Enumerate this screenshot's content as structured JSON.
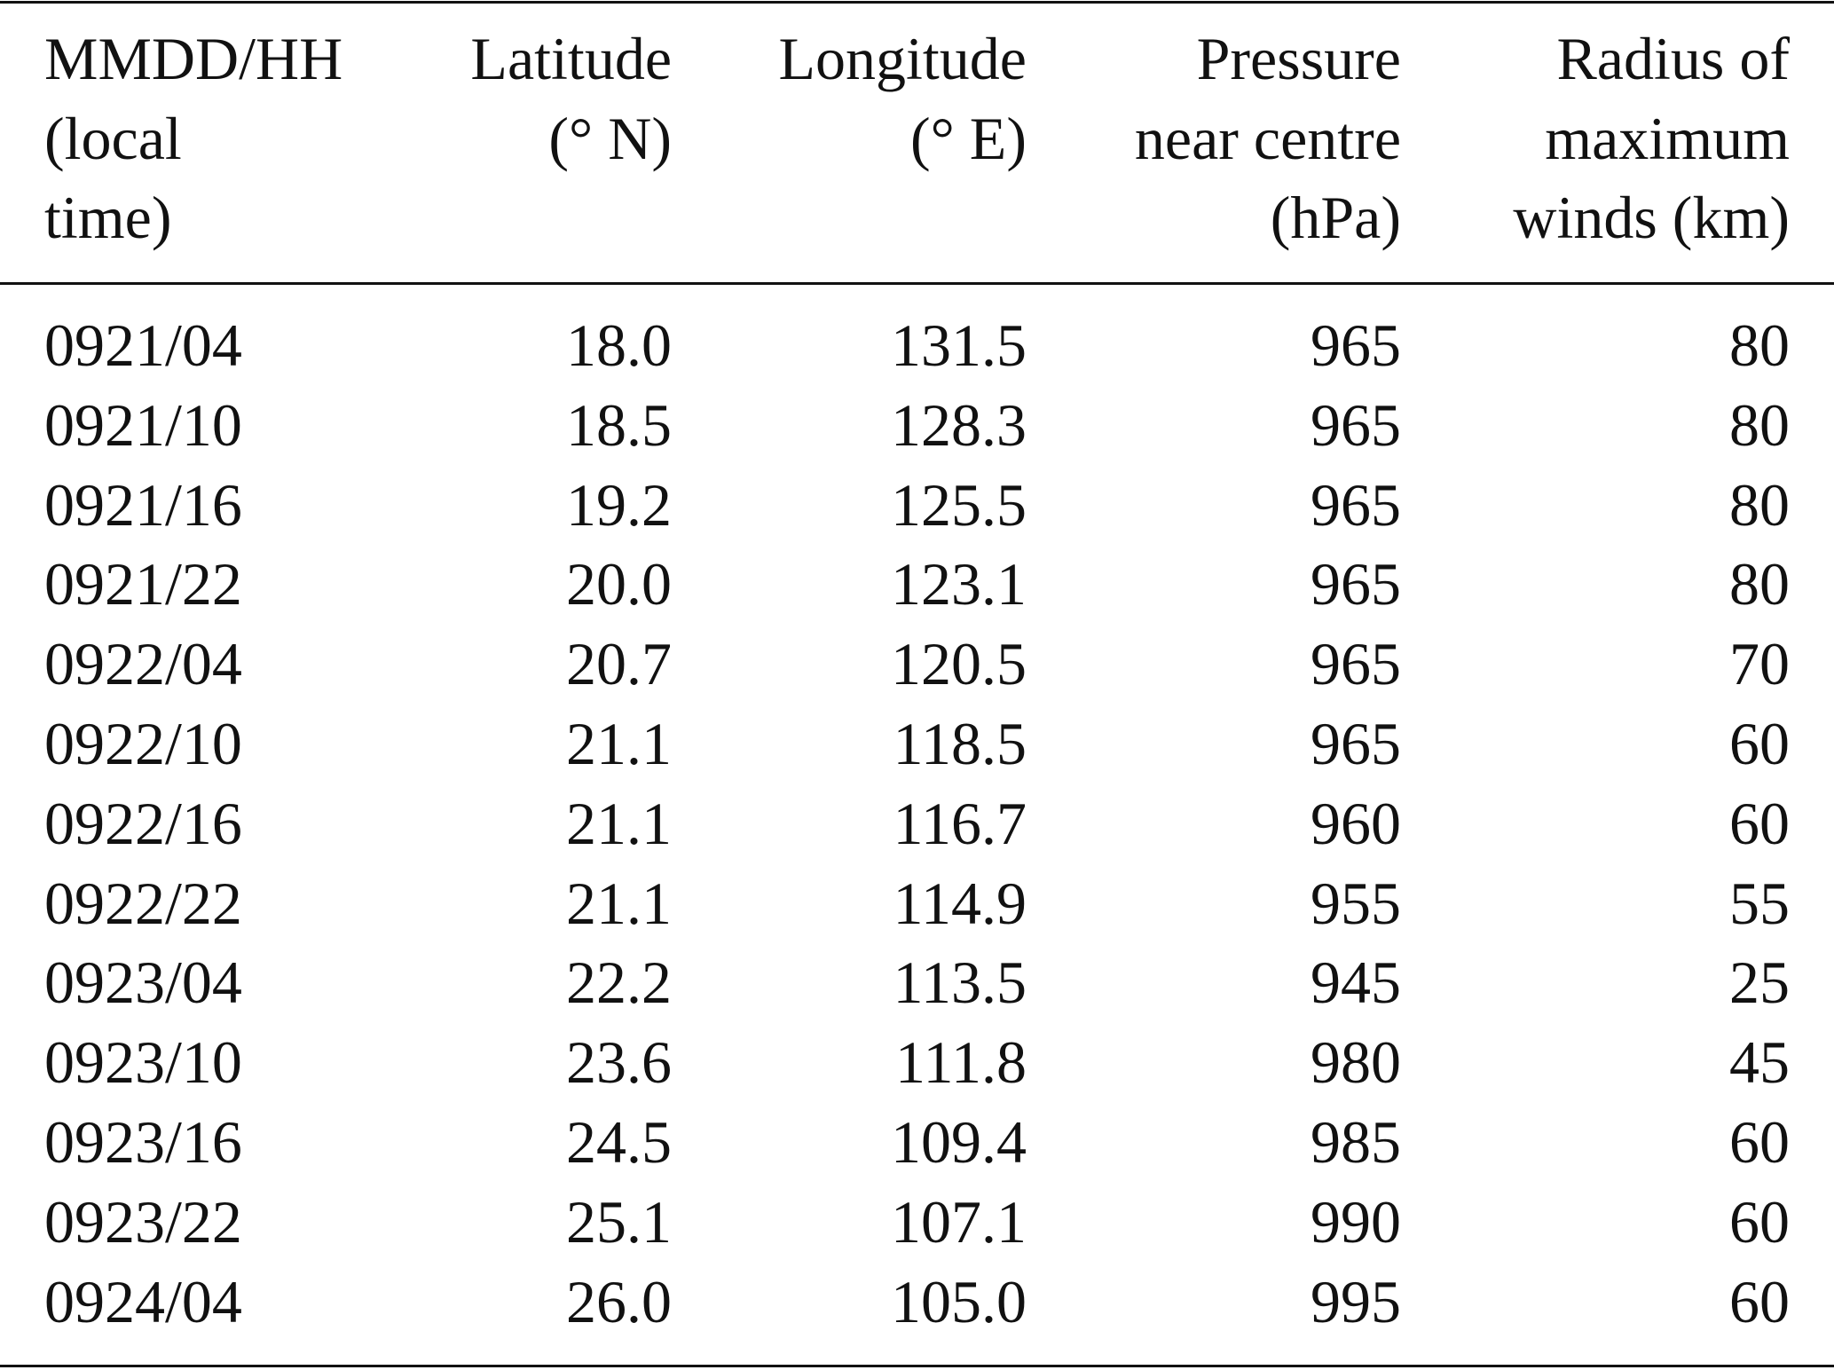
{
  "table": {
    "header": [
      [
        "MMDD/HH",
        "(local",
        "time)"
      ],
      [
        "Latitude",
        "(° N)"
      ],
      [
        "Longitude",
        "(° E)"
      ],
      [
        "Pressure",
        "near centre",
        "(hPa)"
      ],
      [
        "Radius of",
        "maximum",
        "winds (km)"
      ]
    ],
    "rows": [
      [
        "0921/04",
        "18.0",
        "131.5",
        "965",
        "80"
      ],
      [
        "0921/10",
        "18.5",
        "128.3",
        "965",
        "80"
      ],
      [
        "0921/16",
        "19.2",
        "125.5",
        "965",
        "80"
      ],
      [
        "0921/22",
        "20.0",
        "123.1",
        "965",
        "80"
      ],
      [
        "0922/04",
        "20.7",
        "120.5",
        "965",
        "70"
      ],
      [
        "0922/10",
        "21.1",
        "118.5",
        "965",
        "60"
      ],
      [
        "0922/16",
        "21.1",
        "116.7",
        "960",
        "60"
      ],
      [
        "0922/22",
        "21.1",
        "114.9",
        "955",
        "55"
      ],
      [
        "0923/04",
        "22.2",
        "113.5",
        "945",
        "25"
      ],
      [
        "0923/10",
        "23.6",
        "111.8",
        "980",
        "45"
      ],
      [
        "0923/16",
        "24.5",
        "109.4",
        "985",
        "60"
      ],
      [
        "0923/22",
        "25.1",
        "107.1",
        "990",
        "60"
      ],
      [
        "0924/04",
        "26.0",
        "105.0",
        "995",
        "60"
      ]
    ]
  }
}
